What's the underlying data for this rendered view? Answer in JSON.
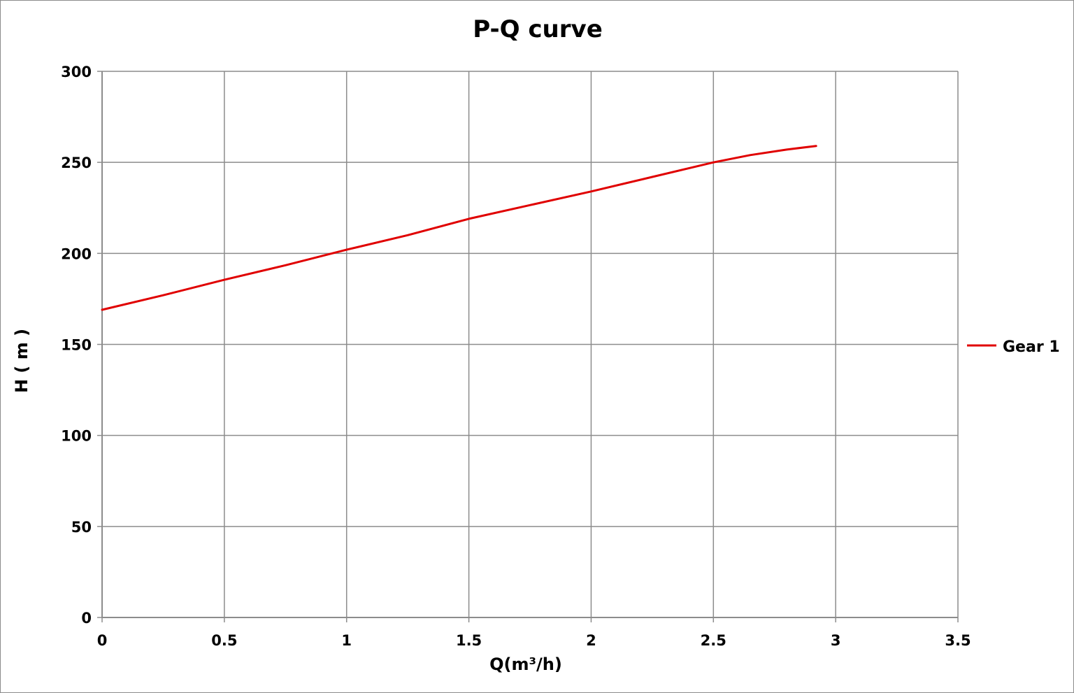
{
  "chart_data": {
    "type": "line",
    "title": "P-Q  curve",
    "xlabel": "Q(m³/h)",
    "ylabel": "H ( m )",
    "xlim": [
      0,
      3.5
    ],
    "ylim": [
      0,
      300
    ],
    "x_ticks": [
      0,
      0.5,
      1,
      1.5,
      2,
      2.5,
      3,
      3.5
    ],
    "x_tick_labels": [
      "0",
      "0.5",
      "1",
      "1.5",
      "2",
      "2.5",
      "3",
      "3.5"
    ],
    "y_ticks": [
      0,
      50,
      100,
      150,
      200,
      250,
      300
    ],
    "y_tick_labels": [
      "0",
      "50",
      "100",
      "150",
      "200",
      "250",
      "300"
    ],
    "grid": true,
    "legend_position": "right",
    "series": [
      {
        "name": "Gear 1",
        "color": "#e00000",
        "x": [
          0,
          0.25,
          0.5,
          0.75,
          1.0,
          1.25,
          1.5,
          1.75,
          2.0,
          2.25,
          2.5,
          2.65,
          2.8,
          2.92
        ],
        "y": [
          169,
          177,
          185.5,
          193.5,
          202,
          210,
          219,
          226.5,
          234,
          242,
          250,
          254,
          257,
          259
        ]
      }
    ]
  }
}
